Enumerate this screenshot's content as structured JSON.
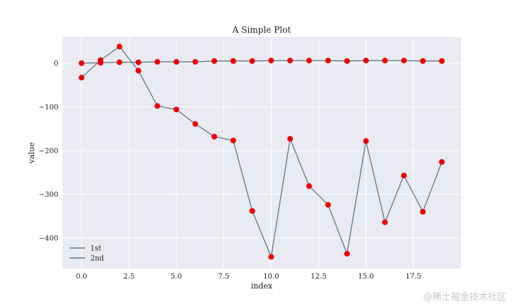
{
  "chart_data": {
    "type": "line",
    "title": "A Simple Plot",
    "xlabel": "index",
    "ylabel": "value",
    "xlim": [
      -1,
      20
    ],
    "ylim": [
      -470,
      60
    ],
    "x_ticks": [
      0.0,
      2.5,
      5.0,
      7.5,
      10.0,
      12.5,
      15.0,
      17.5
    ],
    "x_tick_labels": [
      "0.0",
      "2.5",
      "5.0",
      "7.5",
      "10.0",
      "12.5",
      "15.0",
      "17.5"
    ],
    "y_ticks": [
      0,
      -100,
      -200,
      -300,
      -400
    ],
    "y_tick_labels": [
      "0",
      "−100",
      "−200",
      "−300",
      "−400"
    ],
    "legend_position": "lower-left",
    "line_color": "#5b7a8c",
    "marker_color": "#ee0000",
    "background_color": "#eaeaf2",
    "grid": true,
    "series": [
      {
        "name": "1st",
        "x": [
          0,
          1,
          2,
          3,
          4,
          5,
          6,
          7,
          8,
          9,
          10,
          11,
          12,
          13,
          14,
          15,
          16,
          17,
          18,
          19
        ],
        "values": [
          0,
          1,
          2,
          2,
          3,
          3,
          3,
          5,
          5,
          5,
          6,
          6,
          6,
          6,
          5,
          6,
          6,
          6,
          5,
          5
        ]
      },
      {
        "name": "2nd",
        "x": [
          0,
          1,
          2,
          3,
          4,
          5,
          6,
          7,
          8,
          9,
          10,
          11,
          12,
          13,
          14,
          15,
          16,
          17,
          18,
          19
        ],
        "values": [
          -33,
          7,
          38,
          -17,
          -98,
          -106,
          -139,
          -168,
          -177,
          -338,
          -443,
          -173,
          -281,
          -324,
          -436,
          -178,
          -364,
          -257,
          -340,
          -226
        ]
      }
    ]
  },
  "watermark": "@稀土掘金技术社区"
}
